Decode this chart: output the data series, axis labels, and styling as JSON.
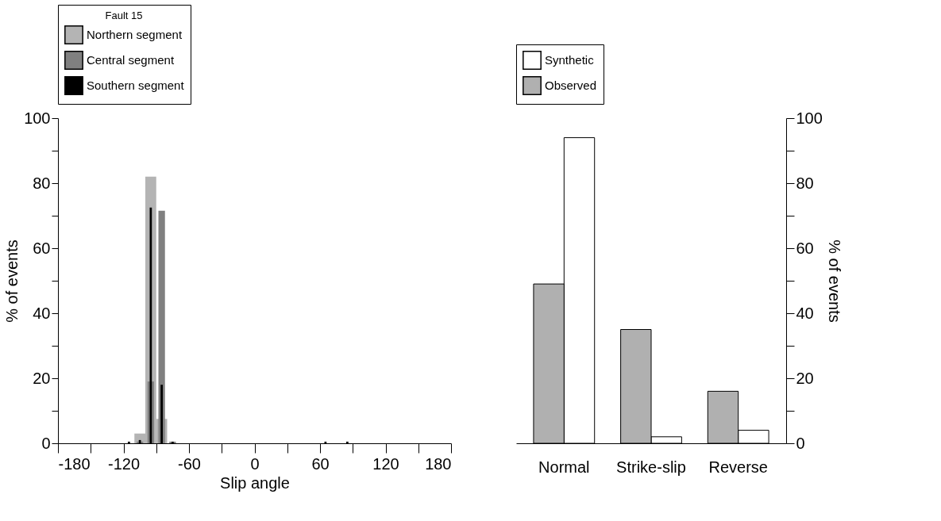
{
  "chart_data": [
    {
      "type": "histogram",
      "xlabel": "Slip angle",
      "ylabel": "% of events",
      "legend_title": "Fault 15",
      "legend": "top",
      "bins": [
        -180,
        -170,
        -160,
        -150,
        -140,
        -130,
        -120,
        -110,
        -100,
        -90,
        -80,
        -70,
        -60,
        -50,
        -40,
        -30,
        -20,
        -10,
        0,
        10,
        20,
        30,
        40,
        50,
        60,
        70,
        80,
        90,
        100,
        110,
        120,
        130,
        140,
        150,
        160,
        170,
        180
      ],
      "series": [
        {
          "name": "Northern segment",
          "color": "#b4b4b4",
          "values": [
            0,
            0,
            0,
            0,
            0,
            0,
            0,
            3,
            82,
            7.5,
            0,
            0,
            0,
            0,
            0,
            0,
            0,
            0,
            0,
            0,
            0,
            0,
            0,
            0,
            0,
            0,
            0,
            0,
            0,
            0,
            0,
            0,
            0,
            0,
            0,
            0
          ]
        },
        {
          "name": "Central segment",
          "color": "#808080",
          "values": [
            0,
            0,
            0,
            0,
            0,
            0,
            0,
            0.5,
            19,
            71.5,
            0.5,
            0,
            0,
            0,
            0,
            0,
            0,
            0,
            0,
            0,
            0,
            0,
            0,
            0,
            0,
            0,
            0,
            0,
            0,
            0,
            0,
            0,
            0,
            0,
            0,
            0
          ]
        },
        {
          "name": "Southern segment",
          "color": "#000000",
          "values": [
            0,
            0,
            0,
            0,
            0,
            0,
            0.5,
            1,
            72.5,
            18,
            0.5,
            0,
            0,
            0,
            0,
            0,
            0,
            0,
            0,
            0,
            0,
            0,
            0,
            0,
            0.5,
            0,
            0.5,
            0,
            0,
            0,
            0,
            0,
            0,
            0,
            0,
            0
          ]
        }
      ],
      "xlim": [
        -180,
        180
      ],
      "xticks": [
        -180,
        {
          "value": -150,
          "label": null
        },
        -120,
        {
          "value": -90,
          "label": null
        },
        -60,
        {
          "value": -30,
          "label": null
        },
        0,
        {
          "value": 30,
          "label": null
        },
        60,
        {
          "value": 90,
          "label": null
        },
        120,
        {
          "value": 150,
          "label": null
        },
        180
      ],
      "ylim": [
        0,
        100
      ],
      "yticks": [
        0,
        {
          "value": 10,
          "label": null
        },
        20,
        {
          "value": 30,
          "label": null
        },
        40,
        {
          "value": 50,
          "label": null
        },
        60,
        {
          "value": 70,
          "label": null
        },
        80,
        {
          "value": 90,
          "label": null
        },
        100
      ],
      "grid": false
    },
    {
      "type": "bar",
      "y2label": "% of events",
      "legend": "top",
      "categories": [
        "Normal",
        "Strike-slip",
        "Reverse"
      ],
      "series": [
        {
          "name": "Synthetic",
          "color": "#ffffff",
          "axis": "y2",
          "values": [
            94,
            2,
            4
          ]
        },
        {
          "name": "Observed",
          "color": "#b0b0b0",
          "axis": "y2",
          "values": [
            49,
            35,
            16
          ]
        }
      ],
      "y2lim": [
        0,
        100
      ],
      "y2ticks": [
        0,
        {
          "value": 10,
          "label": null
        },
        20,
        {
          "value": 30,
          "label": null
        },
        40,
        {
          "value": 50,
          "label": null
        },
        60,
        {
          "value": 70,
          "label": null
        },
        80,
        {
          "value": 90,
          "label": null
        },
        100
      ],
      "grid": false
    }
  ]
}
